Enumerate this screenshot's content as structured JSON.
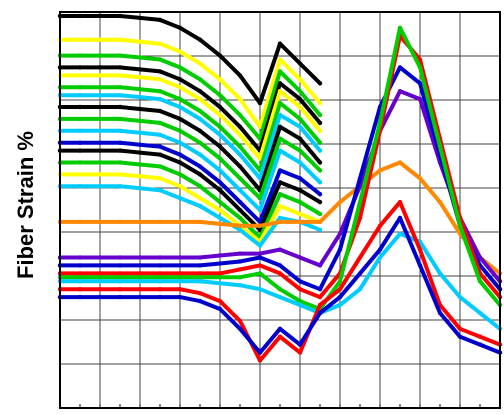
{
  "chart_data": {
    "type": "line",
    "title": "",
    "xlabel": "",
    "ylabel": "Fiber Strain %",
    "xlim": [
      0,
      22
    ],
    "ylim": [
      0,
      100
    ],
    "grid": true,
    "legend": "none",
    "x": [
      0,
      1,
      2,
      3,
      4,
      5,
      6,
      7,
      8,
      9,
      10,
      11,
      12,
      13,
      14,
      15,
      16,
      17,
      18,
      19,
      20,
      21,
      22
    ],
    "series": [
      {
        "color": "#000000",
        "values": [
          99,
          99,
          99,
          99,
          98.5,
          98,
          96,
          93,
          89,
          84,
          77,
          92,
          87,
          82,
          null,
          null,
          null,
          null,
          null,
          null,
          null,
          null,
          null
        ]
      },
      {
        "color": "#ffff00",
        "values": [
          93,
          93,
          93,
          93,
          92.5,
          92,
          90,
          87,
          83,
          78,
          71,
          88,
          83,
          77,
          null,
          null,
          null,
          null,
          null,
          null,
          null,
          null,
          null
        ]
      },
      {
        "color": "#00cc00",
        "values": [
          89,
          89,
          89,
          89,
          88.5,
          88,
          86,
          83,
          79,
          74,
          68,
          85,
          80,
          74,
          null,
          null,
          null,
          null,
          null,
          null,
          null,
          null,
          null
        ]
      },
      {
        "color": "#000000",
        "values": [
          86,
          86,
          86,
          86,
          85.5,
          85,
          83,
          80,
          76,
          71,
          65,
          82,
          78,
          72,
          null,
          null,
          null,
          null,
          null,
          null,
          null,
          null,
          null
        ]
      },
      {
        "color": "#ffff00",
        "values": [
          84,
          84,
          84,
          84,
          83.5,
          83,
          81,
          78,
          74,
          69,
          63,
          80,
          76,
          70,
          null,
          null,
          null,
          null,
          null,
          null,
          null,
          null,
          null
        ]
      },
      {
        "color": "#00cc00",
        "values": [
          81,
          81,
          81,
          81,
          80.5,
          80,
          78,
          75,
          71,
          66,
          60,
          77,
          73,
          67,
          null,
          null,
          null,
          null,
          null,
          null,
          null,
          null,
          null
        ]
      },
      {
        "color": "#00ccff",
        "values": [
          79,
          79,
          79,
          79,
          78.5,
          78,
          76,
          73,
          69,
          64,
          58,
          74,
          71,
          65,
          null,
          null,
          null,
          null,
          null,
          null,
          null,
          null,
          null
        ]
      },
      {
        "color": "#000000",
        "values": [
          76,
          76,
          76,
          76,
          75.5,
          75,
          73,
          70,
          66,
          61,
          55,
          71,
          68,
          62,
          null,
          null,
          null,
          null,
          null,
          null,
          null,
          null,
          null
        ]
      },
      {
        "color": "#00cc00",
        "values": [
          73,
          73,
          73,
          73,
          72.5,
          72,
          70,
          67,
          63,
          58,
          53,
          68,
          65,
          60,
          null,
          null,
          null,
          null,
          null,
          null,
          null,
          null,
          null
        ]
      },
      {
        "color": "#00ccff",
        "values": [
          70,
          70,
          70,
          70,
          69.5,
          69,
          67,
          64,
          60,
          55,
          50,
          65,
          62,
          57,
          null,
          null,
          null,
          null,
          null,
          null,
          null,
          null,
          null
        ]
      },
      {
        "color": "#0000cc",
        "values": [
          67,
          67,
          67,
          67,
          66.5,
          66,
          64,
          61,
          57,
          52,
          47,
          60,
          58,
          54,
          null,
          null,
          null,
          null,
          null,
          null,
          null,
          null,
          null
        ]
      },
      {
        "color": "#000000",
        "values": [
          65,
          65,
          65,
          65,
          64.5,
          64,
          62,
          59,
          55,
          50,
          45,
          57,
          55,
          52,
          null,
          null,
          null,
          null,
          null,
          null,
          null,
          null,
          null
        ]
      },
      {
        "color": "#00cc00",
        "values": [
          62,
          62,
          62,
          62,
          61.5,
          61,
          59,
          56,
          52,
          48,
          43,
          54,
          52,
          49,
          null,
          null,
          null,
          null,
          null,
          null,
          null,
          null,
          null
        ]
      },
      {
        "color": "#ffff00",
        "values": [
          59,
          59,
          59,
          59,
          58.5,
          58,
          56,
          53,
          50,
          46,
          42,
          51,
          49,
          47,
          null,
          null,
          null,
          null,
          null,
          null,
          null,
          null,
          null
        ]
      },
      {
        "color": "#00ccff",
        "values": [
          56,
          56,
          56,
          56,
          55.5,
          55,
          53,
          51,
          48,
          45,
          41,
          48,
          47,
          45,
          null,
          null,
          null,
          null,
          null,
          null,
          null,
          null,
          null
        ]
      },
      {
        "color": "#ff8800",
        "values": [
          47,
          47,
          47,
          47,
          47,
          47,
          47,
          47,
          46.5,
          46,
          46,
          47,
          47,
          47,
          52,
          56,
          60,
          62,
          58,
          52,
          44,
          38,
          34
        ]
      },
      {
        "color": "#6600cc",
        "values": [
          38,
          38,
          38,
          38,
          38,
          38,
          38,
          38,
          38.5,
          39,
          39,
          40,
          38,
          36,
          44,
          56,
          70,
          80,
          78,
          62,
          48,
          38,
          32
        ]
      },
      {
        "color": "#0000cc",
        "values": [
          36,
          36,
          36,
          36,
          36,
          36,
          36,
          36,
          36.5,
          37,
          38,
          36,
          32,
          30,
          40,
          58,
          76,
          86,
          82,
          64,
          46,
          36,
          30
        ]
      },
      {
        "color": "#ff0000",
        "values": [
          34,
          34,
          34,
          34,
          34,
          34,
          34,
          34,
          34,
          35,
          36,
          34,
          30,
          28,
          34,
          48,
          70,
          94,
          88,
          68,
          48,
          34,
          28
        ]
      },
      {
        "color": "#00cc00",
        "values": [
          33,
          33,
          33,
          33,
          33,
          33,
          33,
          33,
          33,
          33,
          34,
          30,
          27,
          25,
          32,
          52,
          72,
          96,
          86,
          66,
          46,
          32,
          26
        ]
      },
      {
        "color": "#00ccff",
        "values": [
          32,
          32,
          32,
          32,
          32,
          32,
          32,
          32,
          31.5,
          31,
          30,
          28,
          26,
          24,
          26,
          30,
          38,
          44,
          42,
          34,
          28,
          24,
          20
        ]
      },
      {
        "color": "#ff0000",
        "values": [
          30,
          30,
          30,
          30,
          30,
          30,
          30,
          29,
          27,
          22,
          12,
          18,
          14,
          26,
          30,
          38,
          46,
          52,
          40,
          26,
          20,
          18,
          16
        ]
      },
      {
        "color": "#0000cc",
        "values": [
          28,
          28,
          28,
          28,
          28,
          28,
          28,
          27,
          25,
          20,
          14,
          20,
          16,
          24,
          28,
          34,
          40,
          48,
          36,
          24,
          18,
          16,
          14
        ]
      }
    ]
  }
}
